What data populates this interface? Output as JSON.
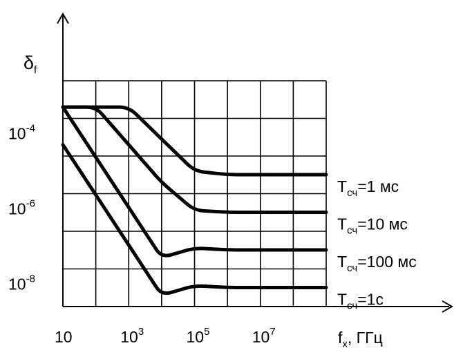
{
  "chart_data": {
    "type": "line",
    "y_axis_label": {
      "main": "δ",
      "sub": "f"
    },
    "x_axis_label": {
      "main": "f",
      "sub": "x",
      "rest": ", ГГц"
    },
    "x_scale": "log",
    "y_scale": "log",
    "xlim": [
      10,
      1000000000
    ],
    "ylim": [
      1e-09,
      0.001
    ],
    "grid": true,
    "x_ticks": [
      {
        "value": 10,
        "base": "10",
        "exp": ""
      },
      {
        "value": 1000,
        "base": "10",
        "exp": "3"
      },
      {
        "value": 100000,
        "base": "10",
        "exp": "5"
      },
      {
        "value": 10000000,
        "base": "10",
        "exp": "7"
      }
    ],
    "y_ticks": [
      {
        "value": 0.0001,
        "base": "10",
        "exp": "-4"
      },
      {
        "value": 1e-06,
        "base": "10",
        "exp": "-6"
      },
      {
        "value": 1e-08,
        "base": "10",
        "exp": "-8"
      }
    ],
    "series": [
      {
        "label_main": "T",
        "label_sub": "сч",
        "label_rest": "=1 мс",
        "points": [
          [
            10,
            0.0002
          ],
          [
            1000,
            0.0002
          ],
          [
            100000,
            4e-06
          ],
          [
            1000000,
            3.2e-06
          ],
          [
            1000000000,
            3.2e-06
          ]
        ]
      },
      {
        "label_main": "T",
        "label_sub": "сч",
        "label_rest": "=10 мс",
        "points": [
          [
            10,
            0.0002
          ],
          [
            100,
            0.0002
          ],
          [
            10000,
            2e-06
          ],
          [
            100000,
            3.6e-07
          ],
          [
            1000000,
            3.2e-07
          ],
          [
            1000000000,
            3.2e-07
          ]
        ]
      },
      {
        "label_main": "T",
        "label_sub": "сч",
        "label_rest": "=100 мс",
        "points": [
          [
            10,
            0.0002
          ],
          [
            10000,
            2e-08
          ],
          [
            100000,
            3.6e-08
          ],
          [
            1000000,
            3.2e-08
          ],
          [
            1000000000,
            3.2e-08
          ]
        ]
      },
      {
        "label_main": "T",
        "label_sub": "сч",
        "label_rest": "=1с",
        "points": [
          [
            10,
            2e-05
          ],
          [
            10000,
            2e-09
          ],
          [
            100000,
            3.6e-09
          ],
          [
            1000000,
            3.2e-09
          ],
          [
            1000000000,
            3.2e-09
          ]
        ]
      }
    ]
  }
}
